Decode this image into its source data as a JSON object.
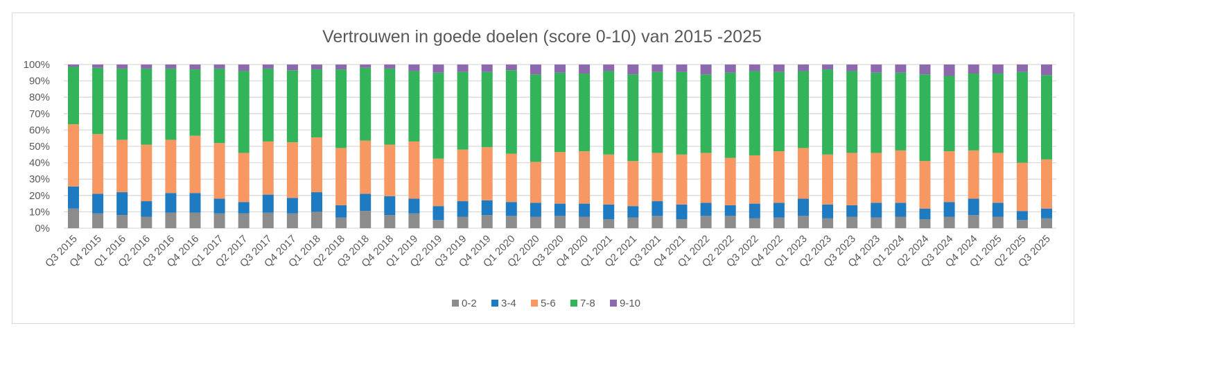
{
  "chart_data": {
    "type": "bar",
    "stacked": true,
    "percent": true,
    "title": "Vertrouwen in goede doelen (score 0-10) van 2015 -2025",
    "xlabel": "",
    "ylabel": "",
    "ylim": [
      0,
      100
    ],
    "yticks": [
      "0%",
      "10%",
      "20%",
      "30%",
      "40%",
      "50%",
      "60%",
      "70%",
      "80%",
      "90%",
      "100%"
    ],
    "grid": true,
    "legend_position": "bottom",
    "categories": [
      "Q3 2015",
      "Q4 2015",
      "Q1 2016",
      "Q2 2016",
      "Q3 2016",
      "Q4 2016",
      "Q1 2017",
      "Q2 2017",
      "Q3 2017",
      "Q4 2017",
      "Q1 2018",
      "Q2 2018",
      "Q3 2018",
      "Q4 2018",
      "Q1 2019",
      "Q2 2019",
      "Q3 2019",
      "Q4 2019",
      "Q1 2020",
      "Q2 2020",
      "Q3 2020",
      "Q4 2020",
      "Q1 2021",
      "Q2 2021",
      "Q3 2021",
      "Q4 2021",
      "Q1 2022",
      "Q2 2022",
      "Q3 2022",
      "Q4 2022",
      "Q1 2023",
      "Q2 2023",
      "Q3 2023",
      "Q4 2023",
      "Q1 2024",
      "Q2 2024",
      "Q3 2024",
      "Q4 2024",
      "Q1 2025",
      "Q2 2025",
      "Q3 2025"
    ],
    "series": [
      {
        "name": "0-2",
        "color": "#8c8c8c",
        "values": [
          12,
          9,
          8,
          7,
          9.5,
          9.5,
          9,
          9,
          9.5,
          9,
          10,
          6.5,
          10.5,
          8,
          9,
          5,
          7,
          8,
          7.5,
          7,
          7.5,
          7,
          5.5,
          6.5,
          7.5,
          5.5,
          7.5,
          7.5,
          6,
          6.5,
          7.5,
          6,
          7,
          6.5,
          7,
          5.5,
          7,
          8,
          7,
          5,
          6
        ]
      },
      {
        "name": "3-4",
        "color": "#1f7bc1",
        "values": [
          13.5,
          12,
          14,
          9.5,
          12,
          12,
          9,
          7,
          11,
          9.5,
          12,
          7.5,
          10.5,
          11.5,
          9,
          8.5,
          9.5,
          9,
          8.5,
          8.5,
          7.5,
          8,
          9,
          7,
          9,
          9,
          8,
          6.5,
          9,
          9,
          10.5,
          8.5,
          7,
          9,
          8.5,
          6.5,
          9,
          10,
          8.5,
          5.5,
          6
        ]
      },
      {
        "name": "5-6",
        "color": "#f79862",
        "values": [
          38,
          36.5,
          32,
          34.5,
          32.5,
          35,
          34,
          30,
          32.5,
          34,
          33.5,
          35,
          32.5,
          31.5,
          35,
          29,
          31.5,
          32.5,
          29.5,
          25,
          31.5,
          32,
          30.5,
          27.5,
          29.5,
          30.5,
          30.5,
          29,
          29.5,
          31.5,
          31,
          30.5,
          32,
          30.5,
          32,
          29,
          31,
          29.5,
          30.5,
          29.5,
          30
        ]
      },
      {
        "name": "7-8",
        "color": "#33b45a",
        "values": [
          35,
          40.5,
          43.5,
          46.5,
          43.5,
          40.5,
          45.5,
          50,
          44.5,
          44,
          41.5,
          48,
          44.5,
          46.5,
          43,
          52.5,
          47.5,
          46,
          51,
          53.5,
          48.5,
          47.5,
          51,
          53,
          49.5,
          50.5,
          48,
          52,
          51.5,
          48.5,
          47,
          52,
          50,
          49,
          47.5,
          53,
          46,
          47,
          48.5,
          55.5,
          51.5
        ]
      },
      {
        "name": "9-10",
        "color": "#8c68ad",
        "values": [
          1.5,
          2,
          2.5,
          2.5,
          2.5,
          3,
          2.5,
          4,
          2.5,
          3.5,
          3,
          3,
          2,
          2.5,
          4,
          5,
          4.5,
          4.5,
          3.5,
          6,
          5,
          5.5,
          4,
          6,
          4.5,
          4.5,
          6,
          5,
          4,
          4.5,
          4,
          3,
          4,
          5,
          5,
          6,
          7,
          5.5,
          5.5,
          4.5,
          6.5
        ]
      }
    ]
  }
}
